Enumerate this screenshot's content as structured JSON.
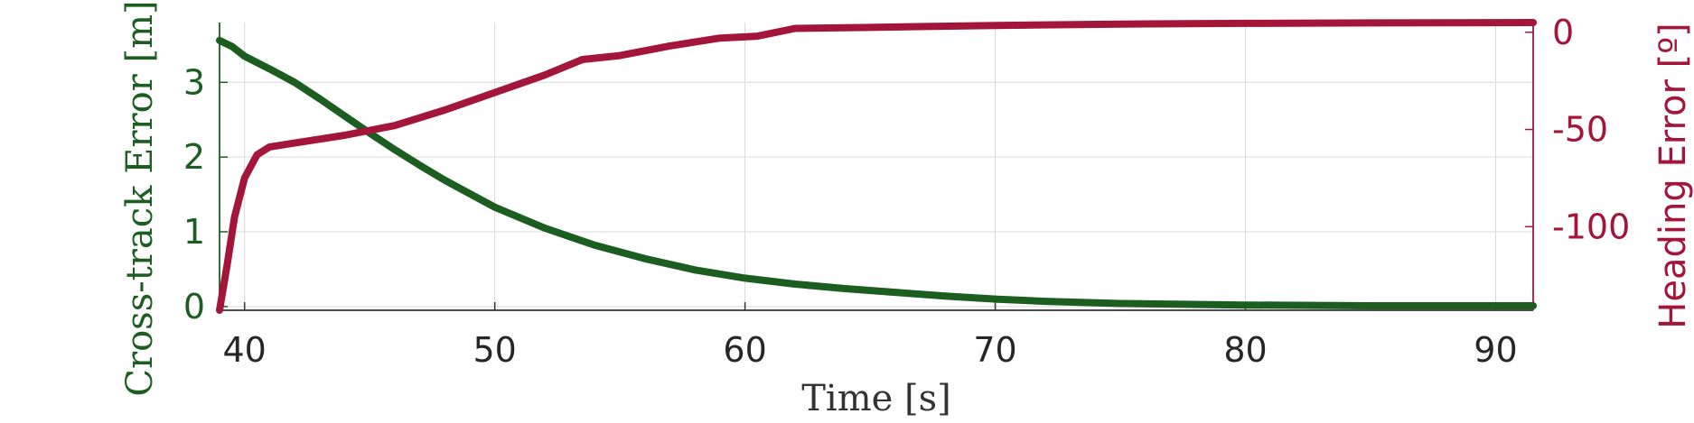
{
  "chart_data": {
    "type": "line",
    "xlabel": "Time [s]",
    "ylabel_left": "Cross-track Error [m]",
    "ylabel_right": "Heading Error [º]",
    "xlim": [
      39,
      91.5
    ],
    "ylim_left": [
      -0.05,
      3.8
    ],
    "ylim_right": [
      -143,
      5
    ],
    "xticks": [
      40,
      50,
      60,
      70,
      80,
      90
    ],
    "yticks_left": [
      0,
      1,
      2,
      3
    ],
    "yticks_right": [
      0,
      -50,
      -100
    ],
    "grid": true,
    "colors": {
      "left": "#1b5e20",
      "right": "#a3163a",
      "grid": "#d9d9d9",
      "axis": "#333333"
    },
    "series": [
      {
        "name": "Cross-track Error",
        "axis": "left",
        "x": [
          39,
          39.5,
          40,
          41,
          42,
          43,
          44,
          45,
          46,
          47,
          48,
          50,
          52,
          54,
          56,
          58,
          60,
          62,
          64,
          66,
          68,
          70,
          72,
          75,
          80,
          85,
          91.5
        ],
        "y": [
          3.56,
          3.48,
          3.35,
          3.18,
          3.0,
          2.78,
          2.55,
          2.32,
          2.1,
          1.89,
          1.69,
          1.33,
          1.05,
          0.82,
          0.64,
          0.49,
          0.38,
          0.3,
          0.24,
          0.19,
          0.14,
          0.1,
          0.07,
          0.04,
          0.02,
          0.01,
          0.01
        ]
      },
      {
        "name": "Heading Error",
        "axis": "right",
        "x": [
          39,
          39.3,
          39.6,
          40,
          40.5,
          41,
          42,
          44,
          46,
          48,
          50,
          52,
          53.5,
          55,
          57,
          59,
          60.5,
          62,
          65,
          70,
          75,
          80,
          85,
          91.5
        ],
        "y": [
          -143,
          -120,
          -95,
          -75,
          -63,
          -59,
          -57,
          -53,
          -48,
          -40,
          -31,
          -22,
          -14,
          -12,
          -7,
          -3,
          -2,
          2,
          2.5,
          3.5,
          4.2,
          4.6,
          4.8,
          5
        ]
      }
    ]
  }
}
